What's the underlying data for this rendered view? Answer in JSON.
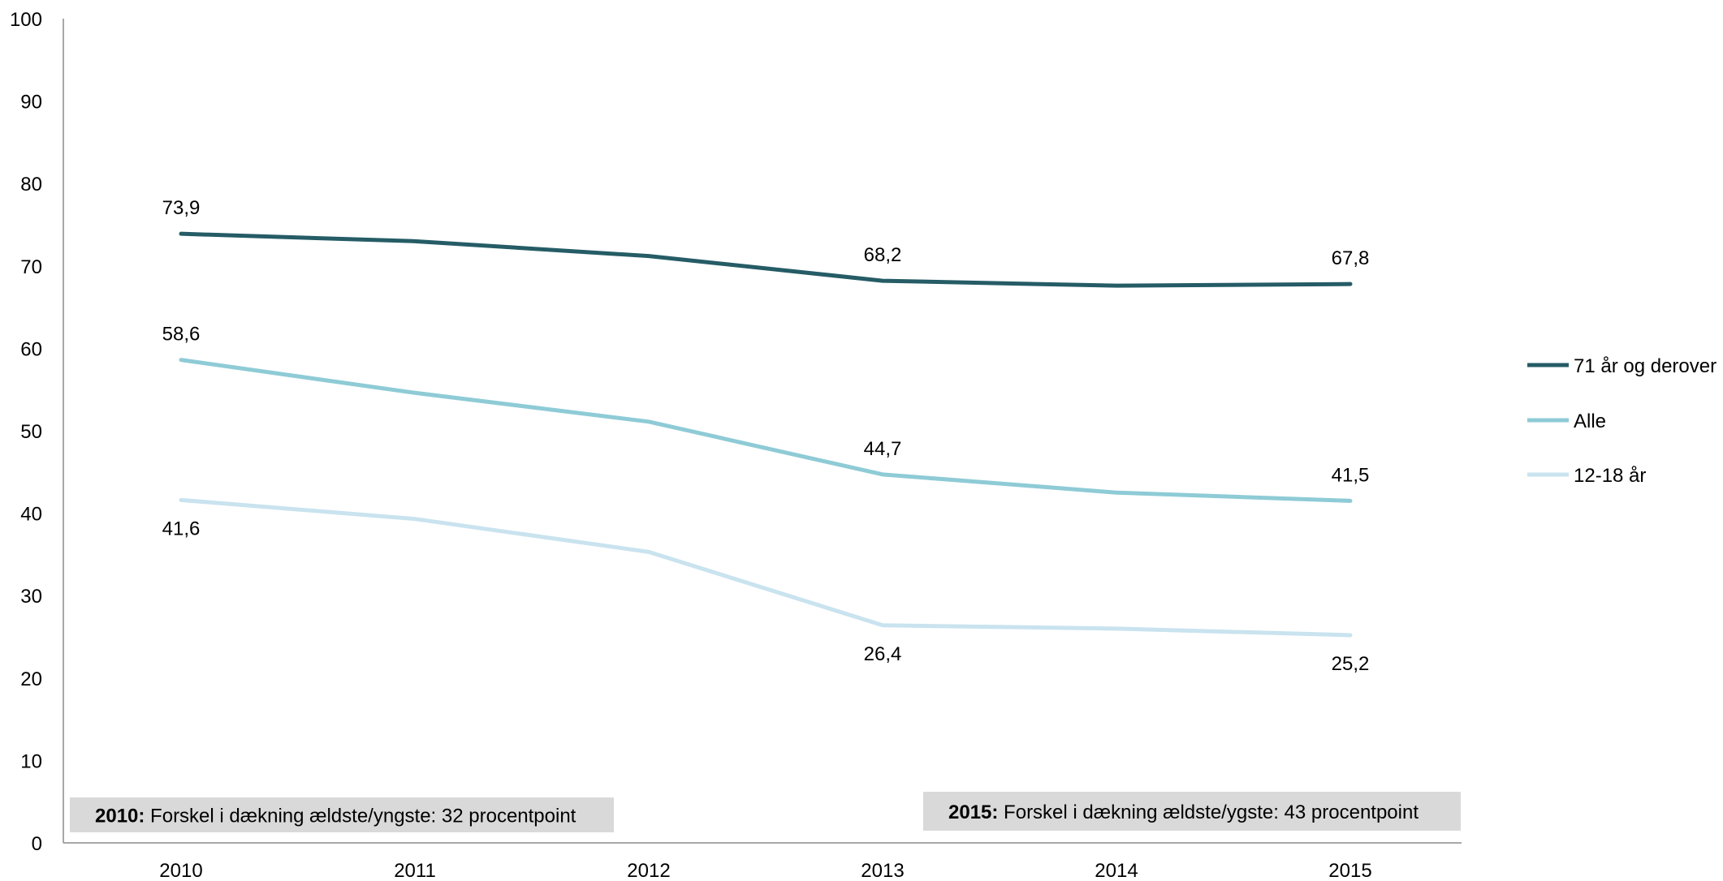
{
  "chart_data": {
    "type": "line",
    "categories": [
      "2010",
      "2011",
      "2012",
      "2013",
      "2014",
      "2015"
    ],
    "ylim": [
      0,
      100
    ],
    "yticks": [
      0,
      10,
      20,
      30,
      40,
      50,
      60,
      70,
      80,
      90,
      100
    ],
    "ytick_labels": [
      "0",
      "10",
      "20",
      "30",
      "40",
      "50",
      "60",
      "70",
      "80",
      "90",
      "100"
    ],
    "grid": false,
    "legend_position": "right",
    "series": [
      {
        "name": "71 år og derover",
        "color": "#255c66",
        "values": [
          73.9,
          73.0,
          71.2,
          68.2,
          67.6,
          67.8
        ],
        "labels": [
          {
            "index": 0,
            "text": "73,9",
            "pos": "above"
          },
          {
            "index": 3,
            "text": "68,2",
            "pos": "above"
          },
          {
            "index": 5,
            "text": "67,8",
            "pos": "above"
          }
        ]
      },
      {
        "name": "Alle",
        "color": "#8ecbd6",
        "values": [
          58.6,
          54.6,
          51.1,
          44.7,
          42.5,
          41.5
        ],
        "labels": [
          {
            "index": 0,
            "text": "58,6",
            "pos": "above"
          },
          {
            "index": 3,
            "text": "44,7",
            "pos": "above"
          },
          {
            "index": 5,
            "text": "41,5",
            "pos": "above"
          }
        ]
      },
      {
        "name": "12-18 år",
        "color": "#c9e3ef",
        "values": [
          41.6,
          39.3,
          35.3,
          26.4,
          26.0,
          25.2
        ],
        "labels": [
          {
            "index": 0,
            "text": "41,6",
            "pos": "below"
          },
          {
            "index": 3,
            "text": "26,4",
            "pos": "below"
          },
          {
            "index": 5,
            "text": "25,2",
            "pos": "below"
          }
        ]
      }
    ],
    "annotations": [
      {
        "bold": "2010:",
        "text": " Forskel i dækning ældste/yngste: 32 procentpoint"
      },
      {
        "bold": "2015:",
        "text": " Forskel i dækning ældste/ygste: 43 procentpoint"
      }
    ]
  }
}
